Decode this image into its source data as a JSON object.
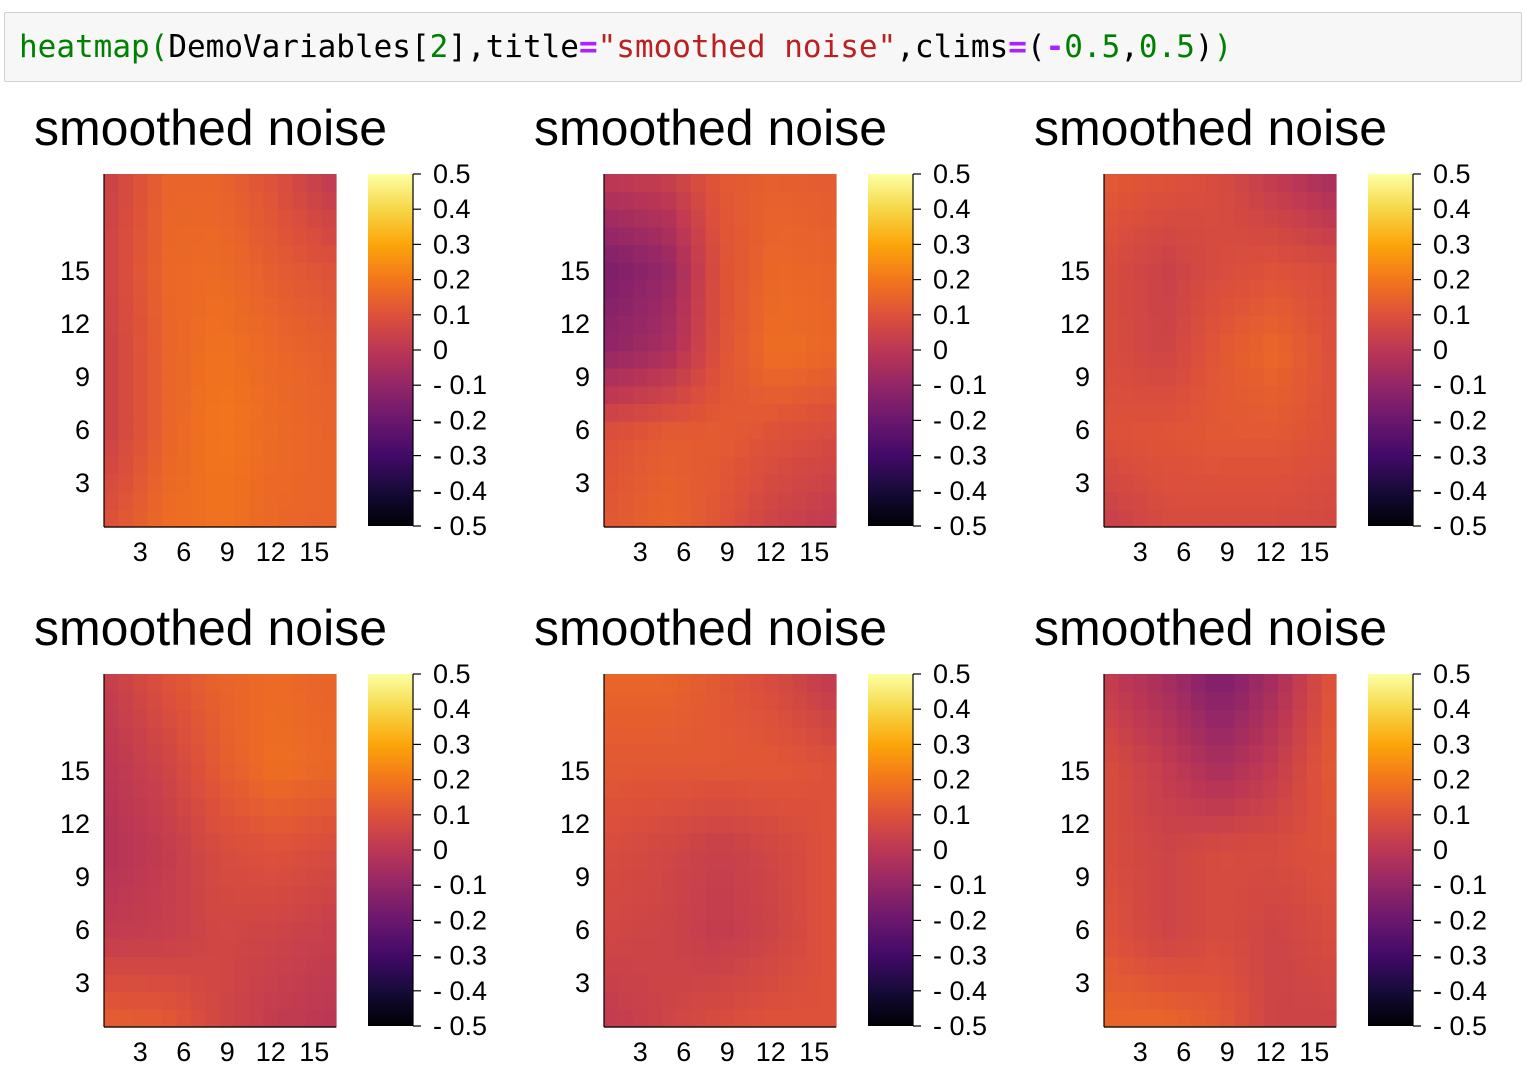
{
  "code": {
    "fn": "heatmap",
    "open_paren": "(",
    "arg": "DemoVariables[",
    "index": "2",
    "arg_close": "],title",
    "eq1": "=",
    "title_str": "\"smoothed noise\"",
    "clims_kw": ",clims",
    "eq2": "=",
    "tuple_open": "(",
    "neg": "-",
    "lo": "0.5",
    "comma": ",",
    "hi": "0.5",
    "tuple_close": ")",
    "close_paren": ")"
  },
  "chart_data": [
    {
      "type": "heatmap",
      "title": "smoothed noise",
      "xticks": [
        3,
        6,
        9,
        12,
        15
      ],
      "yticks": [
        3,
        6,
        9,
        12,
        15
      ],
      "xlim": [
        0.5,
        16.5
      ],
      "ylim": [
        0.5,
        20.5
      ],
      "clims": [
        -0.5,
        0.5
      ],
      "colormap": "inferno",
      "colorbar_ticks": [
        "0.5",
        "0.4",
        "0.3",
        "0.2",
        "0.1",
        "0",
        "- 0.1",
        "- 0.2",
        "- 0.3",
        "- 0.4",
        "- 0.5"
      ],
      "anchors": [
        [
          0.05,
          0.15,
          0.15,
          0.1,
          0.02
        ],
        [
          0.06,
          0.16,
          0.17,
          0.13,
          0.1
        ],
        [
          0.05,
          0.15,
          0.19,
          0.16,
          0.14
        ],
        [
          0.05,
          0.15,
          0.2,
          0.17,
          0.15
        ],
        [
          0.1,
          0.17,
          0.19,
          0.16,
          0.15
        ]
      ]
    },
    {
      "type": "heatmap",
      "title": "smoothed noise",
      "xticks": [
        3,
        6,
        9,
        12,
        15
      ],
      "yticks": [
        3,
        6,
        9,
        12,
        15
      ],
      "xlim": [
        0.5,
        16.5
      ],
      "ylim": [
        0.5,
        20.5
      ],
      "clims": [
        -0.5,
        0.5
      ],
      "colormap": "inferno",
      "colorbar_ticks": [
        "0.5",
        "0.4",
        "0.3",
        "0.2",
        "0.1",
        "0",
        "- 0.1",
        "- 0.2",
        "- 0.3",
        "- 0.4",
        "- 0.5"
      ],
      "anchors": [
        [
          0.0,
          0.02,
          0.12,
          0.14,
          0.13
        ],
        [
          -0.15,
          -0.1,
          0.1,
          0.16,
          0.15
        ],
        [
          -0.1,
          -0.05,
          0.1,
          0.18,
          0.16
        ],
        [
          0.1,
          0.13,
          0.13,
          0.1,
          0.08
        ],
        [
          0.12,
          0.15,
          0.11,
          0.05,
          0.02
        ]
      ]
    },
    {
      "type": "heatmap",
      "title": "smoothed noise",
      "xticks": [
        3,
        6,
        9,
        12,
        15
      ],
      "yticks": [
        3,
        6,
        9,
        12,
        15
      ],
      "xlim": [
        0.5,
        16.5
      ],
      "ylim": [
        0.5,
        20.5
      ],
      "clims": [
        -0.5,
        0.5
      ],
      "colormap": "inferno",
      "colorbar_ticks": [
        "0.5",
        "0.4",
        "0.3",
        "0.2",
        "0.1",
        "0",
        "- 0.1",
        "- 0.2",
        "- 0.3",
        "- 0.4",
        "- 0.5"
      ],
      "anchors": [
        [
          0.12,
          0.1,
          0.08,
          0.02,
          -0.04
        ],
        [
          0.08,
          0.04,
          0.08,
          0.1,
          0.08
        ],
        [
          0.08,
          0.05,
          0.12,
          0.16,
          0.1
        ],
        [
          0.1,
          0.11,
          0.12,
          0.12,
          0.1
        ],
        [
          0.04,
          0.08,
          0.08,
          0.08,
          0.07
        ]
      ]
    },
    {
      "type": "heatmap",
      "title": "smoothed noise",
      "xticks": [
        3,
        6,
        9,
        12,
        15
      ],
      "yticks": [
        3,
        6,
        9,
        12,
        15
      ],
      "xlim": [
        0.5,
        16.5
      ],
      "ylim": [
        0.5,
        20.5
      ],
      "clims": [
        -0.5,
        0.5
      ],
      "colormap": "inferno",
      "colorbar_ticks": [
        "0.5",
        "0.4",
        "0.3",
        "0.2",
        "0.1",
        "0",
        "- 0.1",
        "- 0.2",
        "- 0.3",
        "- 0.4",
        "- 0.5"
      ],
      "anchors": [
        [
          0.03,
          0.1,
          0.15,
          0.17,
          0.15
        ],
        [
          0.0,
          0.05,
          0.13,
          0.18,
          0.16
        ],
        [
          -0.02,
          0.02,
          0.08,
          0.1,
          0.08
        ],
        [
          0.02,
          0.03,
          0.06,
          0.05,
          0.03
        ],
        [
          0.13,
          0.12,
          0.06,
          0.02,
          0.0
        ]
      ]
    },
    {
      "type": "heatmap",
      "title": "smoothed noise",
      "xticks": [
        3,
        6,
        9,
        12,
        15
      ],
      "yticks": [
        3,
        6,
        9,
        12,
        15
      ],
      "xlim": [
        0.5,
        16.5
      ],
      "ylim": [
        0.5,
        20.5
      ],
      "clims": [
        -0.5,
        0.5
      ],
      "colormap": "inferno",
      "colorbar_ticks": [
        "0.5",
        "0.4",
        "0.3",
        "0.2",
        "0.1",
        "0",
        "- 0.1",
        "- 0.2",
        "- 0.3",
        "- 0.4",
        "- 0.5"
      ],
      "anchors": [
        [
          0.15,
          0.15,
          0.12,
          0.08,
          0.02
        ],
        [
          0.12,
          0.12,
          0.12,
          0.12,
          0.1
        ],
        [
          0.08,
          0.06,
          0.03,
          0.06,
          0.1
        ],
        [
          0.06,
          0.05,
          0.02,
          0.05,
          0.1
        ],
        [
          0.02,
          0.05,
          0.08,
          0.1,
          0.1
        ]
      ]
    },
    {
      "type": "heatmap",
      "title": "smoothed noise",
      "xticks": [
        3,
        6,
        9,
        12,
        15
      ],
      "yticks": [
        3,
        6,
        9,
        12,
        15
      ],
      "xlim": [
        0.5,
        16.5
      ],
      "ylim": [
        0.5,
        20.5
      ],
      "clims": [
        -0.5,
        0.5
      ],
      "colormap": "inferno",
      "colorbar_ticks": [
        "0.5",
        "0.4",
        "0.3",
        "0.2",
        "0.1",
        "0",
        "- 0.1",
        "- 0.2",
        "- 0.3",
        "- 0.4",
        "- 0.5"
      ],
      "anchors": [
        [
          0.02,
          -0.05,
          -0.15,
          -0.05,
          0.1
        ],
        [
          0.08,
          0.02,
          -0.05,
          0.02,
          0.12
        ],
        [
          0.08,
          0.05,
          0.08,
          0.08,
          0.1
        ],
        [
          0.1,
          0.05,
          0.08,
          0.05,
          0.08
        ],
        [
          0.15,
          0.15,
          0.12,
          0.05,
          0.05
        ]
      ]
    }
  ]
}
